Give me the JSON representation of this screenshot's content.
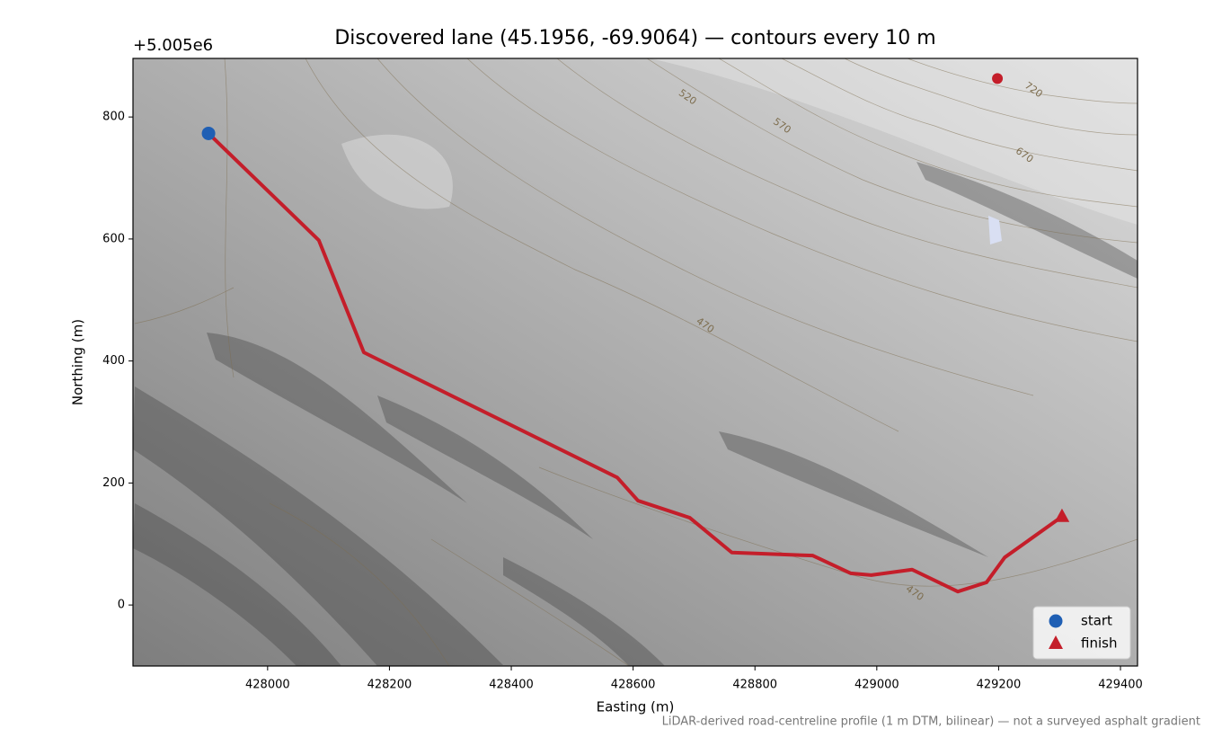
{
  "chart_data": {
    "type": "map",
    "title": "Discovered lane (45.1956, -69.9064) — contours every 10 m",
    "x_label": "Easting (m)",
    "y_label": "Northing (m)",
    "y_offset_label": "+5.005e6",
    "footnote": "LiDAR-derived road-centreline profile (1 m DTM, bilinear) — not a surveyed asphalt gradient",
    "xlim": [
      427779,
      429428
    ],
    "ylim": [
      -100,
      896
    ],
    "xticks": [
      428000,
      428200,
      428400,
      428600,
      428800,
      429000,
      429200,
      429400
    ],
    "yticks": [
      0,
      200,
      400,
      600,
      800
    ],
    "legend": "lower right",
    "route": {
      "color": "#c41e2a",
      "x": [
        427903,
        428084,
        428158,
        428574,
        428608,
        428693,
        428762,
        428895,
        428957,
        428991,
        429058,
        429133,
        429180,
        429210,
        429304
      ],
      "y": [
        773,
        598,
        414,
        209,
        171,
        143,
        86,
        81,
        52,
        49,
        58,
        22,
        37,
        78,
        145
      ]
    },
    "series": [
      {
        "name": "start",
        "color": "#1f5fb4",
        "marker": "circle",
        "x": [
          427903
        ],
        "y": [
          773
        ]
      },
      {
        "name": "finish",
        "color": "#c41e2a",
        "marker": "triangle",
        "x": [
          429304
        ],
        "y": [
          145
        ]
      }
    ],
    "summit": {
      "color": "#c41e2a",
      "x": [
        429198
      ],
      "y": [
        863
      ]
    },
    "contour_labels": [
      {
        "text": 520,
        "x": 428689,
        "y": 832
      },
      {
        "text": 570,
        "x": 428844,
        "y": 785
      },
      {
        "text": 670,
        "x": 429242,
        "y": 737
      },
      {
        "text": 720,
        "x": 429257,
        "y": 844
      },
      {
        "text": 470,
        "x": 428718,
        "y": 458
      },
      {
        "text": 470,
        "x": 429062,
        "y": 19
      }
    ]
  }
}
